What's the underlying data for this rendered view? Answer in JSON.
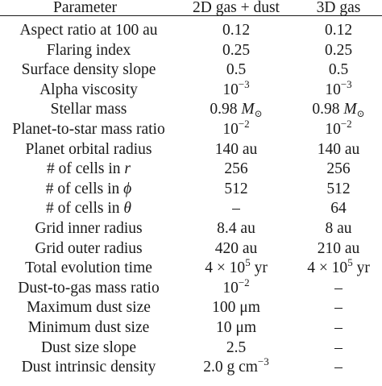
{
  "header": {
    "param": "Parameter",
    "col2": "2D gas + dust",
    "col3": "3D gas"
  },
  "rows": [
    {
      "param": "Aspect ratio at 100 au",
      "v2": "0.12",
      "v3": "0.12"
    },
    {
      "param": "Flaring index",
      "v2": "0.25",
      "v3": "0.25"
    },
    {
      "param": "Surface density slope",
      "v2": "0.5",
      "v3": "0.5"
    },
    {
      "param": "Alpha viscosity",
      "v2": "10",
      "v2_exp": "−3",
      "v3": "10",
      "v3_exp": "−3"
    },
    {
      "param": "Stellar mass",
      "v2": "0.98 ",
      "v2_unit": "M",
      "v2_sub": "⊙",
      "v3": "0.98 ",
      "v3_unit": "M",
      "v3_sub": "⊙"
    },
    {
      "param": "Planet-to-star mass ratio",
      "v2": "10",
      "v2_exp": "−2",
      "v3": "10",
      "v3_exp": "−2"
    },
    {
      "param": "Planet orbital radius",
      "v2": "140 au",
      "v3": "140 au"
    },
    {
      "param_prefix": "# of cells in ",
      "param_var": "r",
      "v2": "256",
      "v3": "256"
    },
    {
      "param_prefix": "# of cells in ",
      "param_var": "ϕ",
      "v2": "512",
      "v3": "512"
    },
    {
      "param_prefix": "# of cells in ",
      "param_var": "θ",
      "v2": "–",
      "v3": "64"
    },
    {
      "param": "Grid inner radius",
      "v2": "8.4 au",
      "v3": "8 au"
    },
    {
      "param": "Grid outer radius",
      "v2": "420 au",
      "v3": "210 au"
    },
    {
      "param": "Total evolution time",
      "v2": "4 × 10",
      "v2_exp": "5",
      "v2_tail": " yr",
      "v3": "4 × 10",
      "v3_exp": "5",
      "v3_tail": " yr"
    },
    {
      "param": "Dust-to-gas mass ratio",
      "v2": "10",
      "v2_exp": "−2",
      "v3": "–"
    },
    {
      "param": "Maximum dust size",
      "v2": "100 μm",
      "v3": "–"
    },
    {
      "param": "Minimum dust size",
      "v2": "10 μm",
      "v3": "–"
    },
    {
      "param": "Dust size slope",
      "v2": "2.5",
      "v3": "–"
    },
    {
      "param": "Dust intrinsic density",
      "v2": "2.0 g cm",
      "v2_exp": "−3",
      "v3": "–"
    }
  ]
}
